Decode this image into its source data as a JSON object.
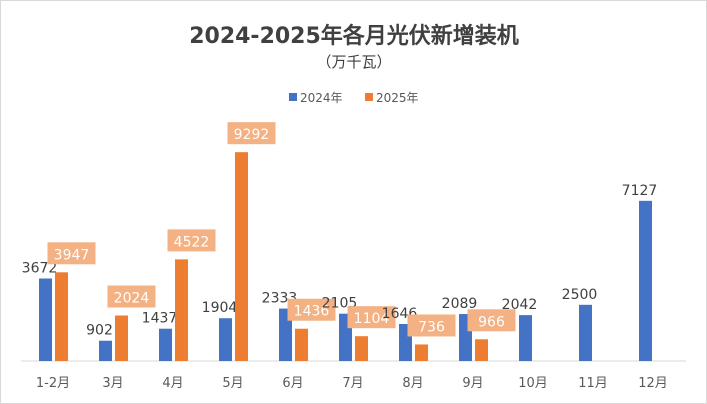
{
  "chart_data": {
    "type": "bar",
    "title": "2024-2025年各月光伏新增装机",
    "subtitle": "（万千瓦）",
    "categories": [
      "1-2月",
      "3月",
      "4月",
      "5月",
      "6月",
      "7月",
      "8月",
      "9月",
      "10月",
      "11月",
      "12月"
    ],
    "series": [
      {
        "name": "2024年",
        "color": "#4472c4",
        "values": [
          3672,
          902,
          1437,
          1904,
          2333,
          2105,
          1646,
          2089,
          2042,
          2500,
          7127
        ]
      },
      {
        "name": "2025年",
        "color": "#ed7d31",
        "values": [
          3947,
          2024,
          4522,
          9292,
          1436,
          1104,
          736,
          966,
          null,
          null,
          null
        ]
      }
    ],
    "data_label_box_color": "#f4b183",
    "legend": "top",
    "grid": false,
    "xlabel": "",
    "ylabel": "",
    "ylim": [
      0,
      9300
    ]
  }
}
